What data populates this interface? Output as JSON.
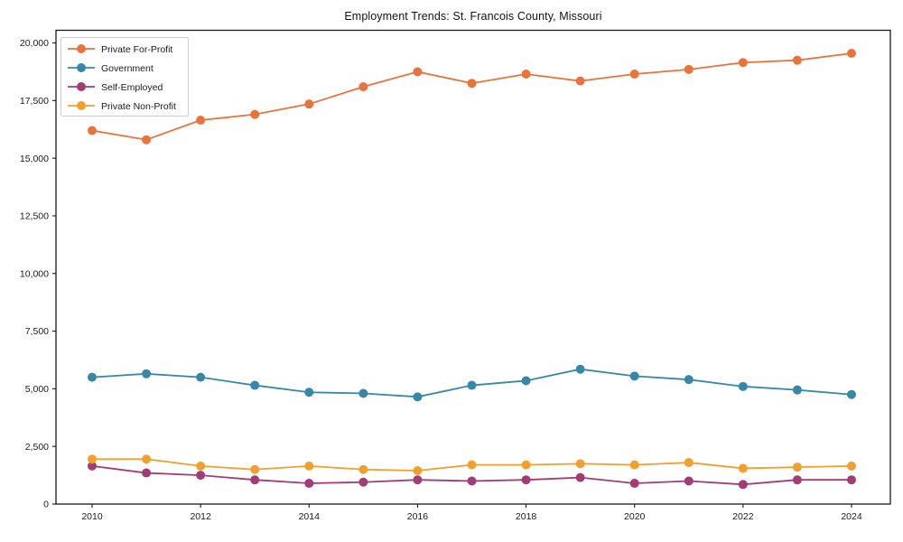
{
  "chart_data": {
    "type": "line",
    "title": "Employment Trends: St. Francois County, Missouri",
    "xlabel": "",
    "ylabel": "",
    "x": [
      2010,
      2011,
      2012,
      2013,
      2014,
      2015,
      2016,
      2017,
      2018,
      2019,
      2020,
      2021,
      2022,
      2023,
      2024
    ],
    "x_tick_labels": [
      "2010",
      "2012",
      "2014",
      "2016",
      "2018",
      "2020",
      "2022",
      "2024"
    ],
    "ylim": [
      0,
      20550
    ],
    "y_ticks": [
      0,
      2500,
      5000,
      7500,
      10000,
      12500,
      15000,
      17500,
      20000
    ],
    "y_tick_labels": [
      "0",
      "2,500",
      "5,000",
      "7,500",
      "10,000",
      "12,500",
      "15,000",
      "17,500",
      "20,000"
    ],
    "grid": false,
    "marker": "circle",
    "legend_position": "upper-left",
    "series": [
      {
        "name": "Private For-Profit",
        "color": "#e8743b",
        "values": [
          16200,
          15800,
          16650,
          16900,
          17350,
          18100,
          18750,
          18250,
          18650,
          18350,
          18650,
          18850,
          19150,
          19250,
          19550
        ]
      },
      {
        "name": "Government",
        "color": "#3788a8",
        "values": [
          5500,
          5650,
          5500,
          5150,
          4850,
          4800,
          4650,
          5150,
          5350,
          5850,
          5550,
          5400,
          5100,
          4950,
          4750
        ]
      },
      {
        "name": "Self-Employed",
        "color": "#a23d74",
        "values": [
          1650,
          1350,
          1250,
          1050,
          900,
          950,
          1050,
          1000,
          1050,
          1150,
          900,
          1000,
          850,
          1050,
          1050
        ]
      },
      {
        "name": "Private Non-Profit",
        "color": "#f0a02f",
        "values": [
          1950,
          1950,
          1650,
          1500,
          1650,
          1500,
          1450,
          1700,
          1700,
          1750,
          1700,
          1800,
          1550,
          1600,
          1650
        ]
      }
    ]
  }
}
